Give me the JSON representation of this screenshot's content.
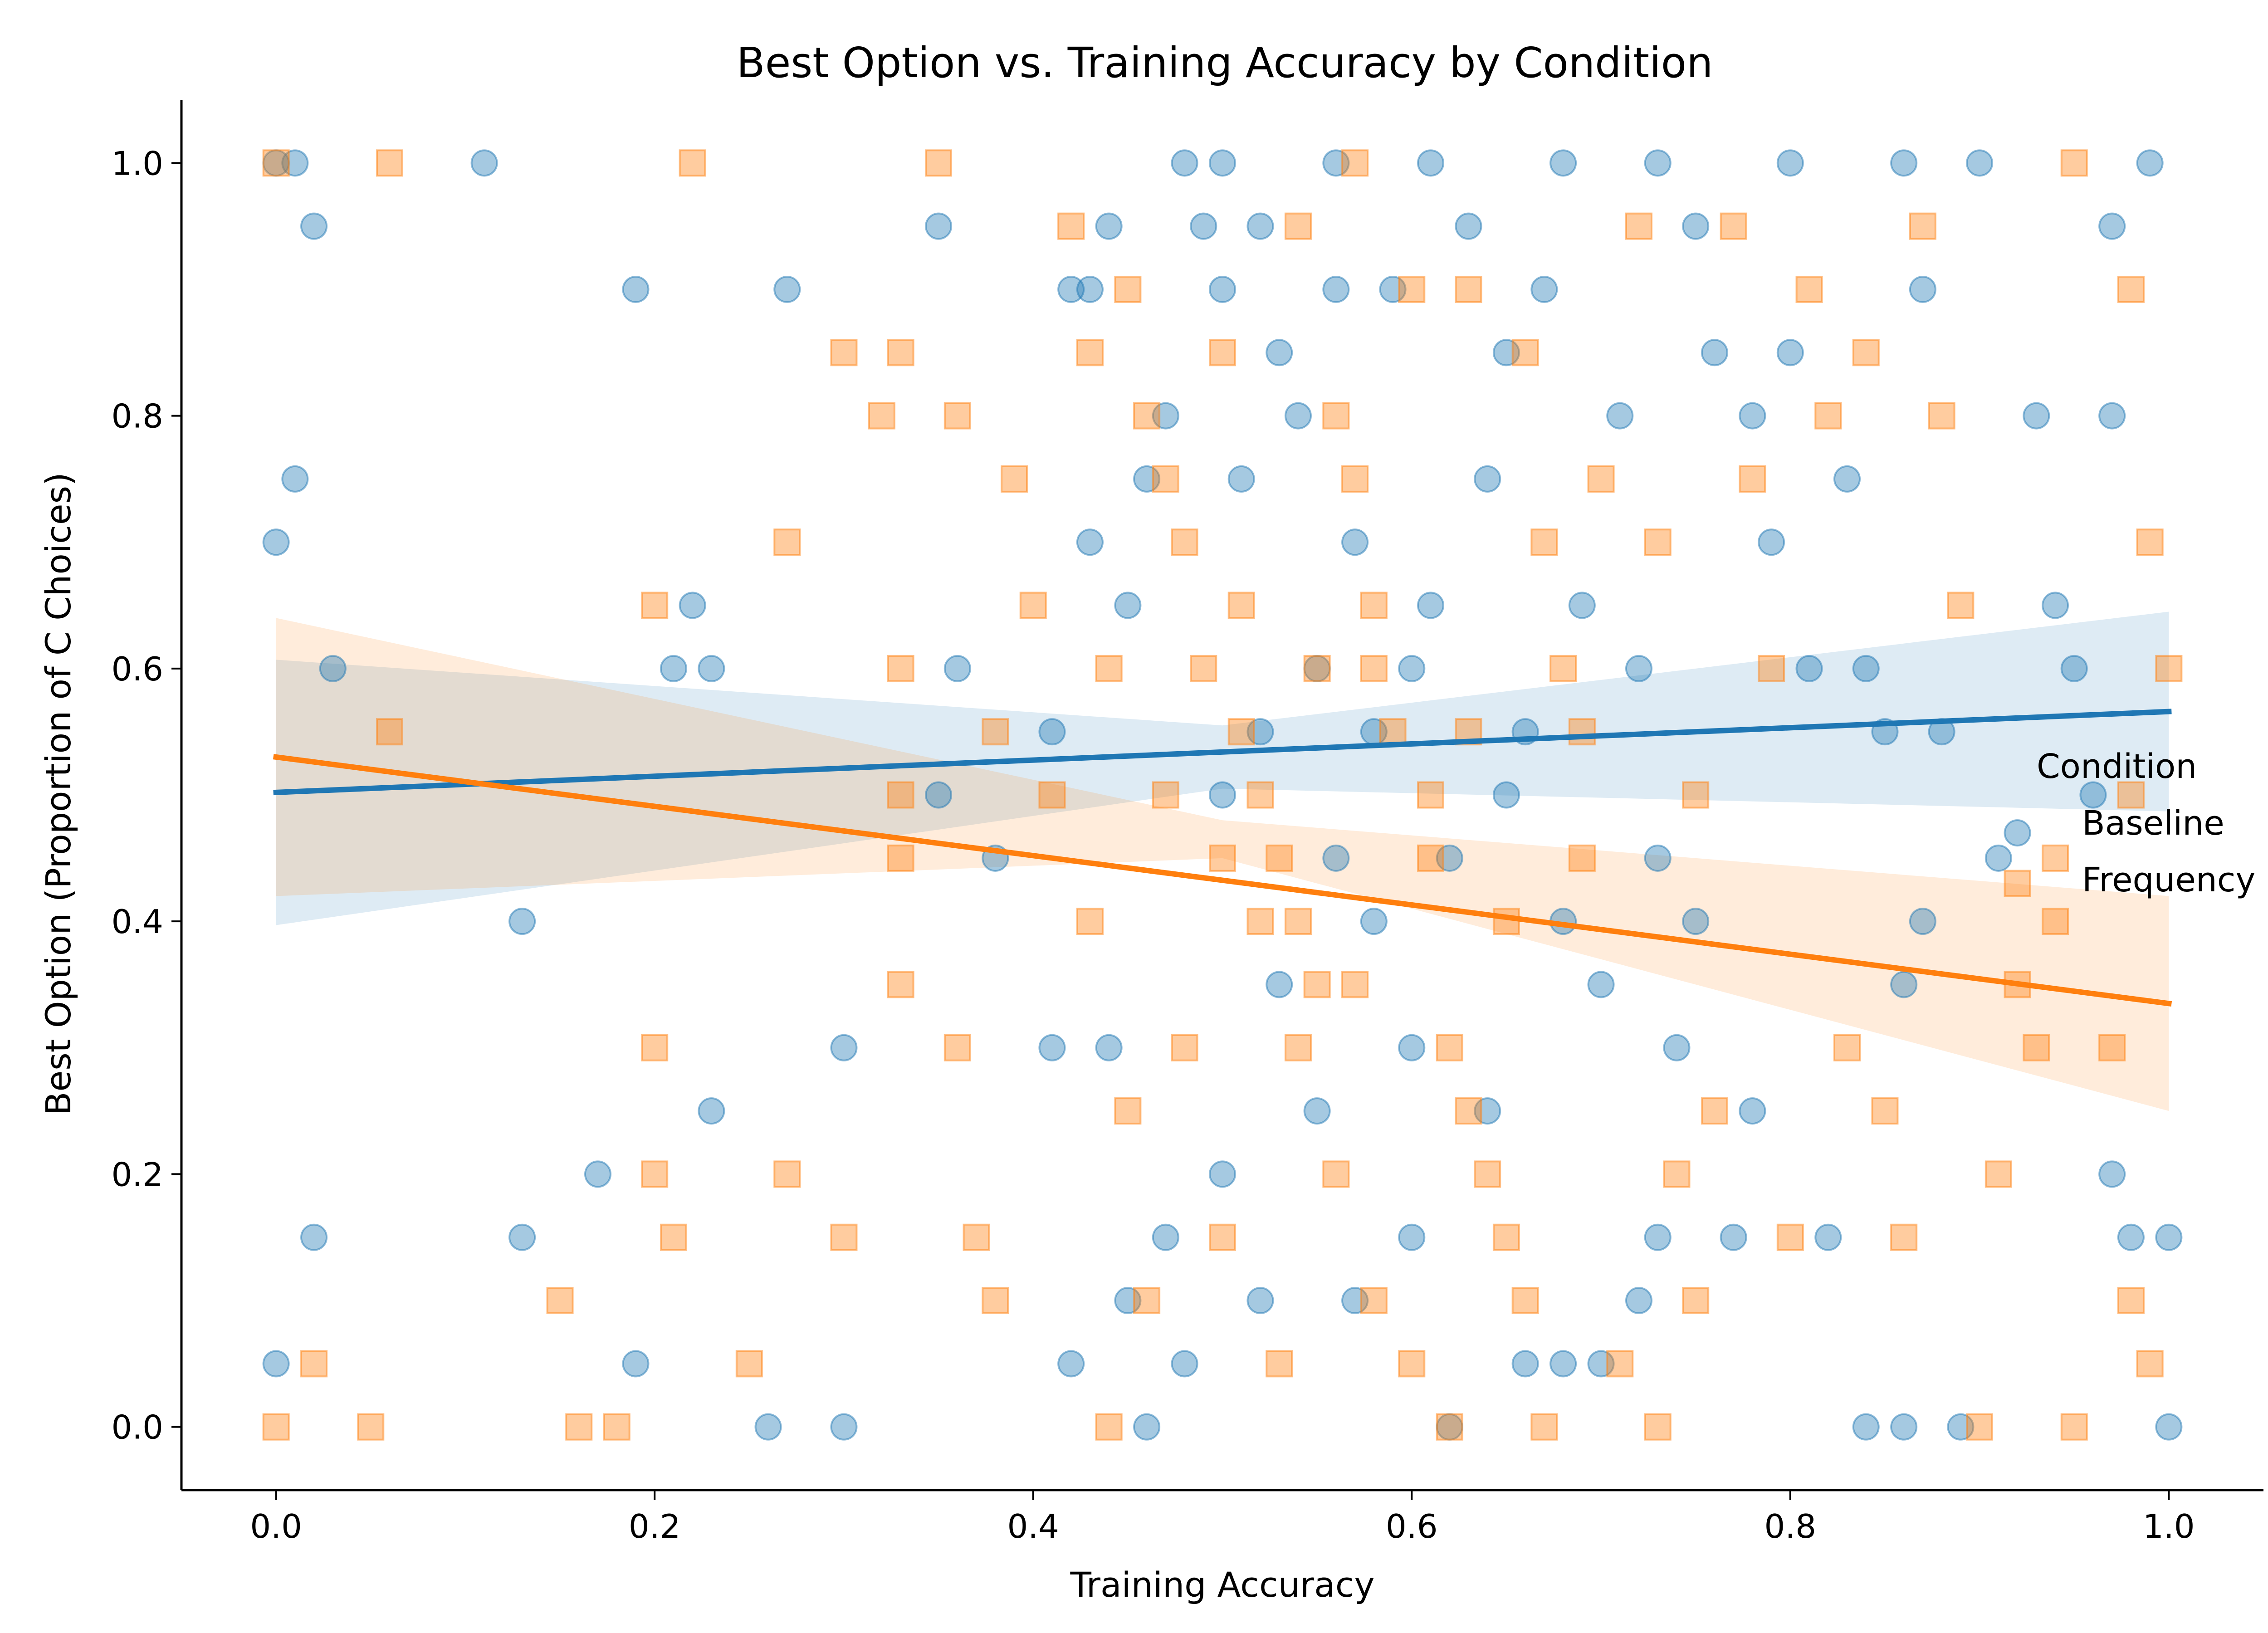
{
  "chart_data": {
    "type": "scatter",
    "title": "Best Option vs. Training Accuracy by Condition",
    "xlabel": "Training Accuracy",
    "ylabel": "Best Option (Proportion of C Choices)",
    "xlim": [
      -0.05,
      1.05
    ],
    "ylim": [
      -0.05,
      1.05
    ],
    "x_ticks": [
      0.0,
      0.2,
      0.4,
      0.6,
      0.8,
      1.0
    ],
    "x_tick_labels": [
      "0.0",
      "0.2",
      "0.4",
      "0.6",
      "0.8",
      "1.0"
    ],
    "y_ticks": [
      0.0,
      0.2,
      0.4,
      0.6,
      0.8,
      1.0
    ],
    "y_tick_labels": [
      "0.0",
      "0.2",
      "0.4",
      "0.6",
      "0.8",
      "1.0"
    ],
    "grid": false,
    "legend": {
      "title": "Condition",
      "placement": "right",
      "entries": [
        "Baseline",
        "Frequency"
      ]
    },
    "series": [
      {
        "name": "Baseline",
        "color": "#1f77b4",
        "marker": "circle",
        "regression": {
          "x": [
            0.0,
            1.0
          ],
          "y": [
            0.502,
            0.566
          ]
        },
        "ci_band": {
          "x": [
            0.0,
            0.5,
            1.0
          ],
          "lower": [
            0.397,
            0.505,
            0.487
          ],
          "upper": [
            0.607,
            0.555,
            0.645
          ]
        },
        "points": [
          [
            0.0,
            1.0
          ],
          [
            0.01,
            1.0
          ],
          [
            0.11,
            1.0
          ],
          [
            0.02,
            0.95
          ],
          [
            0.0,
            0.7
          ],
          [
            0.01,
            0.75
          ],
          [
            0.19,
            0.9
          ],
          [
            0.27,
            0.9
          ],
          [
            0.03,
            0.6
          ],
          [
            0.21,
            0.6
          ],
          [
            0.22,
            0.65
          ],
          [
            0.23,
            0.6
          ],
          [
            0.13,
            0.4
          ],
          [
            0.02,
            0.15
          ],
          [
            0.13,
            0.15
          ],
          [
            0.17,
            0.2
          ],
          [
            0.0,
            0.05
          ],
          [
            0.19,
            0.05
          ],
          [
            0.26,
            0.0
          ],
          [
            0.3,
            0.0
          ],
          [
            0.3,
            0.3
          ],
          [
            0.23,
            0.25
          ],
          [
            0.35,
            0.95
          ],
          [
            0.35,
            0.5
          ],
          [
            0.36,
            0.6
          ],
          [
            0.38,
            0.45
          ],
          [
            0.41,
            0.55
          ],
          [
            0.42,
            0.9
          ],
          [
            0.43,
            0.9
          ],
          [
            0.44,
            0.95
          ],
          [
            0.43,
            0.7
          ],
          [
            0.45,
            0.65
          ],
          [
            0.46,
            0.75
          ],
          [
            0.47,
            0.8
          ],
          [
            0.48,
            1.0
          ],
          [
            0.49,
            0.95
          ],
          [
            0.5,
            0.9
          ],
          [
            0.51,
            0.75
          ],
          [
            0.52,
            0.95
          ],
          [
            0.53,
            0.85
          ],
          [
            0.54,
            0.8
          ],
          [
            0.55,
            0.6
          ],
          [
            0.56,
            0.9
          ],
          [
            0.57,
            0.7
          ],
          [
            0.58,
            0.55
          ],
          [
            0.59,
            0.9
          ],
          [
            0.6,
            0.6
          ],
          [
            0.61,
            0.65
          ],
          [
            0.62,
            0.45
          ],
          [
            0.63,
            0.95
          ],
          [
            0.64,
            0.75
          ],
          [
            0.65,
            0.85
          ],
          [
            0.66,
            0.55
          ],
          [
            0.67,
            0.9
          ],
          [
            0.68,
            0.4
          ],
          [
            0.69,
            0.65
          ],
          [
            0.7,
            0.35
          ],
          [
            0.71,
            0.8
          ],
          [
            0.72,
            0.6
          ],
          [
            0.73,
            0.45
          ],
          [
            0.74,
            0.3
          ],
          [
            0.75,
            0.95
          ],
          [
            0.76,
            0.85
          ],
          [
            0.77,
            0.15
          ],
          [
            0.78,
            0.8
          ],
          [
            0.79,
            0.7
          ],
          [
            0.8,
            0.85
          ],
          [
            0.81,
            0.6
          ],
          [
            0.82,
            0.15
          ],
          [
            0.83,
            0.75
          ],
          [
            0.84,
            0.6
          ],
          [
            0.85,
            0.55
          ],
          [
            0.86,
            0.35
          ],
          [
            0.87,
            0.9
          ],
          [
            0.88,
            0.55
          ],
          [
            0.9,
            1.0
          ],
          [
            0.91,
            0.45
          ],
          [
            0.93,
            0.8
          ],
          [
            0.94,
            0.65
          ],
          [
            0.95,
            0.6
          ],
          [
            0.96,
            0.5
          ],
          [
            0.97,
            0.95
          ],
          [
            0.98,
            0.15
          ],
          [
            0.97,
            0.2
          ],
          [
            0.99,
            1.0
          ],
          [
            1.0,
            0.15
          ],
          [
            1.0,
            0.0
          ],
          [
            0.97,
            0.8
          ],
          [
            0.92,
            0.47
          ],
          [
            0.5,
            0.2
          ],
          [
            0.52,
            0.1
          ],
          [
            0.48,
            0.05
          ],
          [
            0.46,
            0.0
          ],
          [
            0.55,
            0.25
          ],
          [
            0.6,
            0.3
          ],
          [
            0.64,
            0.25
          ],
          [
            0.66,
            0.05
          ],
          [
            0.56,
            0.45
          ],
          [
            0.53,
            0.35
          ],
          [
            0.58,
            0.4
          ],
          [
            0.62,
            0.0
          ],
          [
            0.7,
            0.05
          ],
          [
            0.72,
            0.1
          ],
          [
            0.44,
            0.3
          ],
          [
            0.42,
            0.05
          ],
          [
            0.41,
            0.3
          ],
          [
            0.45,
            0.1
          ],
          [
            0.47,
            0.15
          ],
          [
            0.5,
            0.5
          ],
          [
            0.52,
            0.55
          ],
          [
            0.57,
            0.1
          ],
          [
            0.6,
            0.15
          ],
          [
            0.65,
            0.5
          ],
          [
            0.68,
            0.05
          ],
          [
            0.73,
            0.15
          ],
          [
            0.75,
            0.4
          ],
          [
            0.78,
            0.25
          ],
          [
            0.84,
            0.0
          ],
          [
            0.86,
            0.0
          ],
          [
            0.87,
            0.4
          ],
          [
            0.89,
            0.0
          ],
          [
            0.5,
            1.0
          ],
          [
            0.56,
            1.0
          ],
          [
            0.61,
            1.0
          ],
          [
            0.68,
            1.0
          ],
          [
            0.73,
            1.0
          ],
          [
            0.8,
            1.0
          ],
          [
            0.86,
            1.0
          ]
        ]
      },
      {
        "name": "Frequency",
        "color": "#ff7f0e",
        "marker": "square",
        "regression": {
          "x": [
            0.0,
            1.0
          ],
          "y": [
            0.53,
            0.335
          ]
        },
        "ci_band": {
          "x": [
            0.0,
            0.5,
            1.0
          ],
          "lower": [
            0.42,
            0.45,
            0.25
          ],
          "upper": [
            0.64,
            0.48,
            0.42
          ]
        },
        "points": [
          [
            0.0,
            1.0
          ],
          [
            0.06,
            1.0
          ],
          [
            0.22,
            1.0
          ],
          [
            0.0,
            0.0
          ],
          [
            0.05,
            0.0
          ],
          [
            0.16,
            0.0
          ],
          [
            0.18,
            0.0
          ],
          [
            0.02,
            0.05
          ],
          [
            0.06,
            0.55
          ],
          [
            0.15,
            0.1
          ],
          [
            0.2,
            0.3
          ],
          [
            0.2,
            0.2
          ],
          [
            0.21,
            0.15
          ],
          [
            0.2,
            0.65
          ],
          [
            0.25,
            0.05
          ],
          [
            0.27,
            0.7
          ],
          [
            0.27,
            0.2
          ],
          [
            0.3,
            0.85
          ],
          [
            0.3,
            0.15
          ],
          [
            0.32,
            0.8
          ],
          [
            0.33,
            0.85
          ],
          [
            0.33,
            0.6
          ],
          [
            0.33,
            0.5
          ],
          [
            0.33,
            0.45
          ],
          [
            0.33,
            0.35
          ],
          [
            0.35,
            1.0
          ],
          [
            0.36,
            0.8
          ],
          [
            0.36,
            0.3
          ],
          [
            0.37,
            0.15
          ],
          [
            0.38,
            0.1
          ],
          [
            0.38,
            0.55
          ],
          [
            0.39,
            0.75
          ],
          [
            0.4,
            0.65
          ],
          [
            0.41,
            0.5
          ],
          [
            0.42,
            0.95
          ],
          [
            0.43,
            0.85
          ],
          [
            0.44,
            0.6
          ],
          [
            0.45,
            0.9
          ],
          [
            0.46,
            0.8
          ],
          [
            0.47,
            0.75
          ],
          [
            0.48,
            0.7
          ],
          [
            0.49,
            0.6
          ],
          [
            0.5,
            0.85
          ],
          [
            0.51,
            0.65
          ],
          [
            0.52,
            0.5
          ],
          [
            0.53,
            0.45
          ],
          [
            0.54,
            0.4
          ],
          [
            0.55,
            0.35
          ],
          [
            0.56,
            0.8
          ],
          [
            0.57,
            0.75
          ],
          [
            0.58,
            0.6
          ],
          [
            0.59,
            0.55
          ],
          [
            0.6,
            0.9
          ],
          [
            0.61,
            0.45
          ],
          [
            0.62,
            0.3
          ],
          [
            0.63,
            0.25
          ],
          [
            0.64,
            0.2
          ],
          [
            0.65,
            0.15
          ],
          [
            0.66,
            0.1
          ],
          [
            0.67,
            0.7
          ],
          [
            0.68,
            0.6
          ],
          [
            0.69,
            0.45
          ],
          [
            0.7,
            0.75
          ],
          [
            0.72,
            0.95
          ],
          [
            0.73,
            0.7
          ],
          [
            0.74,
            0.2
          ],
          [
            0.75,
            0.5
          ],
          [
            0.76,
            0.25
          ],
          [
            0.77,
            0.95
          ],
          [
            0.78,
            0.75
          ],
          [
            0.79,
            0.6
          ],
          [
            0.8,
            0.15
          ],
          [
            0.81,
            0.9
          ],
          [
            0.82,
            0.8
          ],
          [
            0.83,
            0.3
          ],
          [
            0.84,
            0.85
          ],
          [
            0.85,
            0.25
          ],
          [
            0.86,
            0.15
          ],
          [
            0.87,
            0.95
          ],
          [
            0.88,
            0.8
          ],
          [
            0.89,
            0.65
          ],
          [
            0.9,
            0.0
          ],
          [
            0.91,
            0.2
          ],
          [
            0.92,
            0.35
          ],
          [
            0.93,
            0.3
          ],
          [
            0.94,
            0.45
          ],
          [
            0.95,
            1.0
          ],
          [
            0.97,
            0.3
          ],
          [
            0.98,
            0.9
          ],
          [
            0.98,
            0.1
          ],
          [
            0.99,
            0.7
          ],
          [
            1.0,
            0.6
          ],
          [
            0.98,
            0.5
          ],
          [
            0.94,
            0.4
          ],
          [
            0.92,
            0.43
          ],
          [
            0.95,
            0.0
          ],
          [
            0.99,
            0.05
          ],
          [
            0.5,
            0.45
          ],
          [
            0.52,
            0.4
          ],
          [
            0.54,
            0.3
          ],
          [
            0.56,
            0.2
          ],
          [
            0.58,
            0.1
          ],
          [
            0.6,
            0.05
          ],
          [
            0.62,
            0.0
          ],
          [
            0.48,
            0.3
          ],
          [
            0.46,
            0.1
          ],
          [
            0.44,
            0.0
          ],
          [
            0.5,
            0.15
          ],
          [
            0.53,
            0.05
          ],
          [
            0.57,
            0.35
          ],
          [
            0.61,
            0.5
          ],
          [
            0.63,
            0.55
          ],
          [
            0.65,
            0.4
          ],
          [
            0.67,
            0.0
          ],
          [
            0.69,
            0.55
          ],
          [
            0.71,
            0.05
          ],
          [
            0.73,
            0.0
          ],
          [
            0.75,
            0.1
          ],
          [
            0.55,
            0.6
          ],
          [
            0.58,
            0.65
          ],
          [
            0.45,
            0.25
          ],
          [
            0.47,
            0.5
          ],
          [
            0.51,
            0.55
          ],
          [
            0.54,
            0.95
          ],
          [
            0.57,
            1.0
          ],
          [
            0.63,
            0.9
          ],
          [
            0.66,
            0.85
          ],
          [
            0.43,
            0.4
          ]
        ]
      }
    ]
  }
}
